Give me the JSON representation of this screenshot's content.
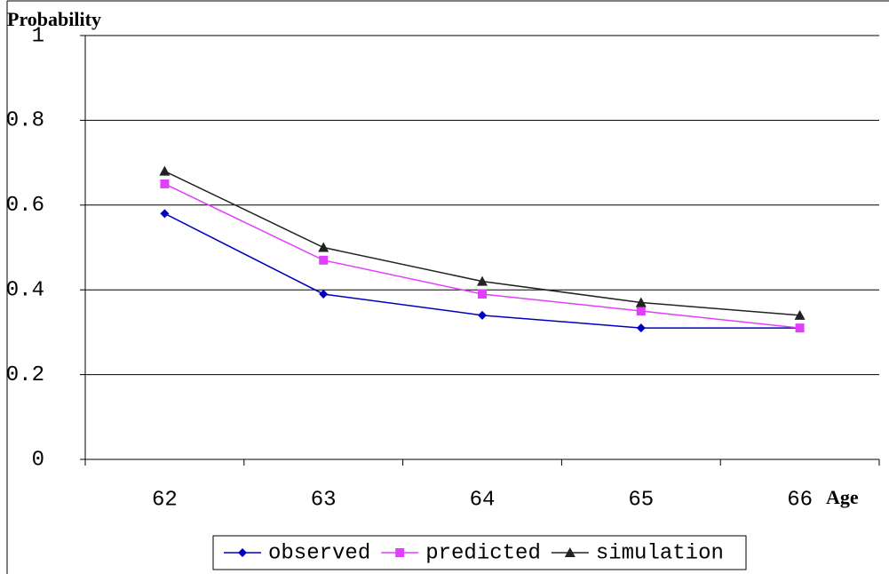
{
  "chart_data": {
    "type": "line",
    "y_label": "Probability",
    "x_label": "Age",
    "categories": [
      "62",
      "63",
      "64",
      "65",
      "66"
    ],
    "series": [
      {
        "name": "observed",
        "color": "#0000c0",
        "marker": "diamond",
        "values": [
          0.58,
          0.39,
          0.34,
          0.31,
          0.31
        ]
      },
      {
        "name": "predicted",
        "color": "#e040fb",
        "marker": "square",
        "values": [
          0.65,
          0.47,
          0.39,
          0.35,
          0.31
        ]
      },
      {
        "name": "simulation",
        "color": "#222222",
        "marker": "triangle",
        "values": [
          0.68,
          0.5,
          0.42,
          0.37,
          0.34
        ]
      }
    ],
    "ylim": [
      0,
      1
    ],
    "yticks": [
      0,
      0.2,
      0.4,
      0.6,
      0.8,
      1
    ],
    "grid": true,
    "legend": "bottom"
  }
}
